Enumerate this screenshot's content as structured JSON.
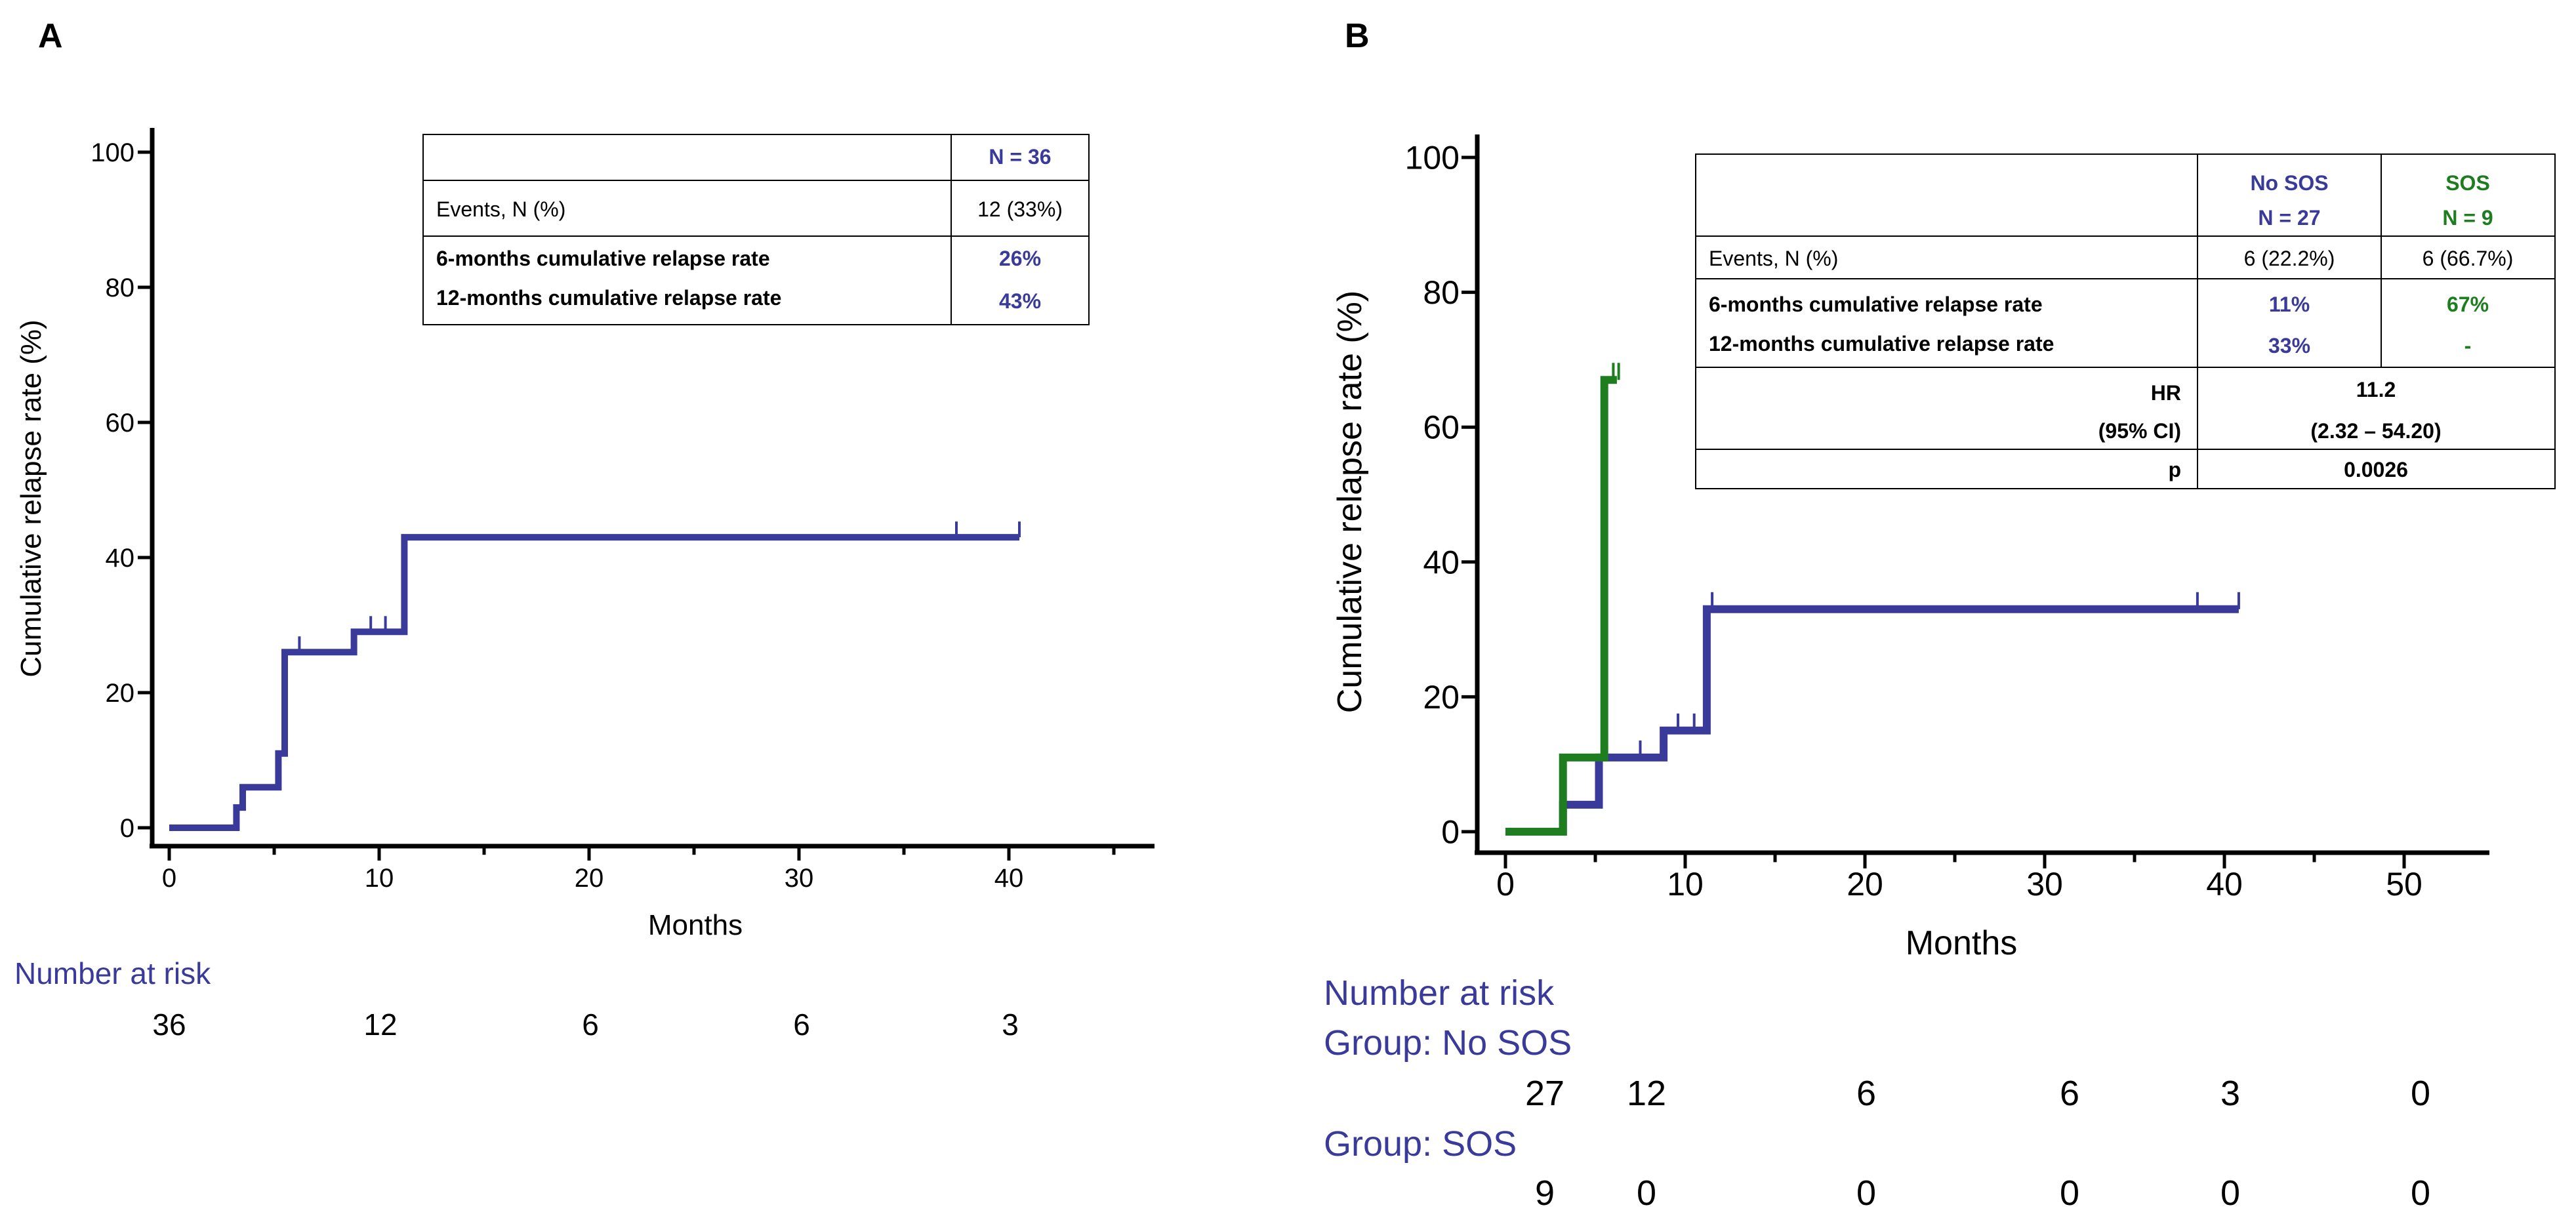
{
  "chart_data": [
    {
      "type": "line",
      "panel_label": "A",
      "xlabel": "Months",
      "ylabel": "Cumulative relapse rate (%)",
      "xlim": [
        0,
        47
      ],
      "ylim": [
        0,
        100
      ],
      "x_ticks": [
        0,
        10,
        20,
        30,
        40
      ],
      "y_ticks": [
        0,
        20,
        40,
        60,
        80,
        100
      ],
      "series": [
        {
          "color": "#3a3a9a",
          "steps": [
            [
              0,
              0
            ],
            [
              3.2,
              0
            ],
            [
              3.2,
              3
            ],
            [
              3.5,
              3
            ],
            [
              3.5,
              6
            ],
            [
              5.2,
              6
            ],
            [
              5.2,
              11
            ],
            [
              5.5,
              11
            ],
            [
              5.5,
              26
            ],
            [
              8.8,
              26
            ],
            [
              8.8,
              29
            ],
            [
              11.2,
              29
            ],
            [
              11.2,
              43
            ],
            [
              40.5,
              43
            ]
          ],
          "censor": [
            6.2,
            9.6,
            10.3,
            37.5,
            40.5
          ]
        }
      ],
      "risk_table": {
        "title": "Number at risk",
        "x": [
          0,
          12,
          24,
          36,
          48
        ],
        "rows": [
          {
            "label": "",
            "values": [
              "36",
              "12",
              "6",
              "6",
              "3"
            ]
          }
        ]
      },
      "summary_table": {
        "header": [
          "",
          "N = 36"
        ],
        "events_label": "Events, N (%)",
        "events_values": [
          "12 (33%)"
        ],
        "rate6_label": "6-months cumulative relapse rate",
        "rate6_values": [
          "26%"
        ],
        "rate12_label": "12-months cumulative relapse rate",
        "rate12_values": [
          "43%"
        ]
      }
    },
    {
      "type": "line",
      "panel_label": "B",
      "xlabel": "Months",
      "ylabel": "Cumulative relapse rate (%)",
      "xlim": [
        0,
        51
      ],
      "ylim": [
        0,
        100
      ],
      "x_ticks": [
        0,
        10,
        20,
        30,
        40,
        50
      ],
      "y_ticks": [
        0,
        20,
        40,
        60,
        80,
        100
      ],
      "series": [
        {
          "name": "No SOS",
          "color": "#3a3a9a",
          "steps": [
            [
              0,
              0
            ],
            [
              3.2,
              0
            ],
            [
              3.2,
              4
            ],
            [
              5.2,
              4
            ],
            [
              5.2,
              11
            ],
            [
              8.8,
              11
            ],
            [
              8.8,
              15
            ],
            [
              11.2,
              15
            ],
            [
              11.2,
              33
            ],
            [
              40.8,
              33
            ]
          ],
          "censor": [
            7.5,
            9.6,
            10.5,
            11.5,
            38.5,
            40.8
          ]
        },
        {
          "name": "SOS",
          "color": "#1e7d1e",
          "steps": [
            [
              0,
              0
            ],
            [
              3.2,
              0
            ],
            [
              3.2,
              11
            ],
            [
              5.5,
              11
            ],
            [
              5.5,
              67
            ],
            [
              6.2,
              67
            ]
          ],
          "censor": [
            6.0,
            6.3
          ]
        }
      ],
      "risk_table": {
        "title": "Number at risk",
        "x": [
          0,
          12,
          24,
          36,
          48,
          60
        ],
        "rows": [
          {
            "label": "Group: No SOS",
            "values": [
              "27",
              "12",
              "6",
              "6",
              "3",
              "0"
            ]
          },
          {
            "label": "Group: SOS",
            "values": [
              "9",
              "0",
              "0",
              "0",
              "0",
              "0"
            ]
          }
        ]
      },
      "summary_table": {
        "col1_line1": "No SOS",
        "col1_line2": "N = 27",
        "col2_line1": "SOS",
        "col2_line2": "N = 9",
        "events_label": "Events, N (%)",
        "events_values": [
          "6 (22.2%)",
          "6 (66.7%)"
        ],
        "rate6_label": "6-months cumulative relapse rate",
        "rate6_values": [
          "11%",
          "67%"
        ],
        "rate12_label": "12-months cumulative relapse rate",
        "rate12_values": [
          "33%",
          "-"
        ],
        "hr_label1": "HR",
        "hr_label2": "(95% CI)",
        "hr_value1": "11.2",
        "hr_value2": "(2.32 – 54.20)",
        "p_label": "p",
        "p_value": "0.0026"
      }
    }
  ],
  "colors": {
    "blue": "#3a3a9a",
    "green": "#1e7d1e",
    "axis": "#000000"
  }
}
